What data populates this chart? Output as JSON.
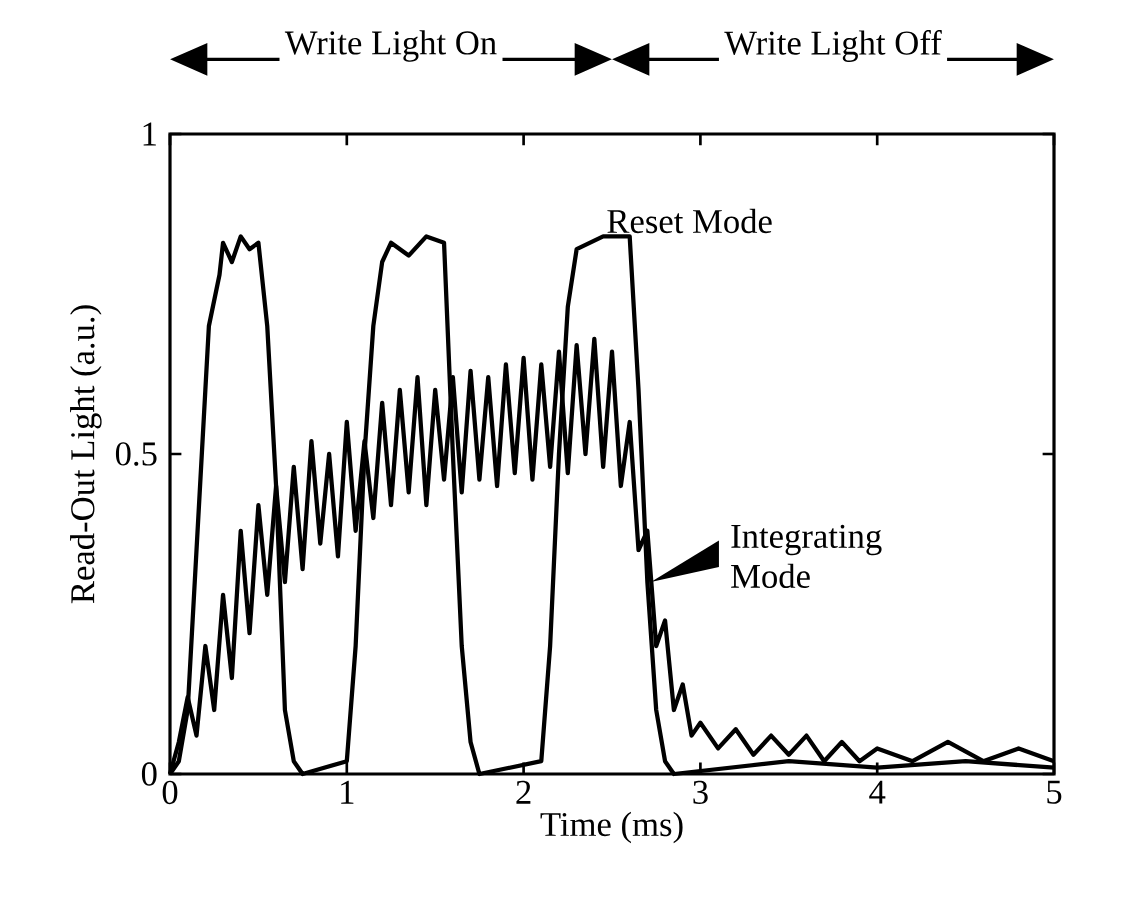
{
  "chart_data": {
    "type": "line",
    "xlabel": "Time (ms)",
    "ylabel": "Read-Out Light (a.u.)",
    "xlim": [
      0,
      5
    ],
    "xticks": [
      0,
      1,
      2,
      3,
      4,
      5
    ],
    "ylim": [
      0,
      1
    ],
    "yticks": [
      0,
      0.5,
      1
    ],
    "marker": "none",
    "line_style": "solid",
    "annotations": [
      "Write Light On",
      "Write Light Off",
      {
        "text": "Reset Mode",
        "x": 2.45,
        "y": 0.84
      },
      "Integrating Mode"
    ],
    "series": [
      {
        "color": "#000000",
        "x": [
          0,
          0.05,
          0.1,
          0.15,
          0.2,
          0.22,
          0.28,
          0.3,
          0.35,
          0.4,
          0.45,
          0.5,
          0.55,
          0.6,
          0.65,
          0.7,
          0.75,
          1.0,
          1.05,
          1.1,
          1.15,
          1.2,
          1.25,
          1.35,
          1.45,
          1.55,
          1.6,
          1.65,
          1.7,
          1.75,
          2.1,
          2.15,
          2.2,
          2.25,
          2.3,
          2.45,
          2.6,
          2.65,
          2.7,
          2.75,
          2.8,
          2.85,
          3.5,
          4.0,
          4.5,
          5.0
        ],
        "values": [
          0,
          0.02,
          0.1,
          0.35,
          0.6,
          0.7,
          0.78,
          0.83,
          0.8,
          0.84,
          0.82,
          0.83,
          0.7,
          0.45,
          0.1,
          0.02,
          0,
          0.02,
          0.2,
          0.5,
          0.7,
          0.8,
          0.83,
          0.81,
          0.84,
          0.83,
          0.5,
          0.2,
          0.05,
          0,
          0.02,
          0.2,
          0.5,
          0.73,
          0.82,
          0.84,
          0.84,
          0.6,
          0.3,
          0.1,
          0.02,
          0,
          0.02,
          0.01,
          0.02,
          0.01
        ]
      },
      {
        "color": "#000000",
        "x": [
          0,
          0.05,
          0.1,
          0.15,
          0.2,
          0.25,
          0.3,
          0.35,
          0.4,
          0.45,
          0.5,
          0.55,
          0.6,
          0.65,
          0.7,
          0.75,
          0.8,
          0.85,
          0.9,
          0.95,
          1.0,
          1.05,
          1.1,
          1.15,
          1.2,
          1.25,
          1.3,
          1.35,
          1.4,
          1.45,
          1.5,
          1.55,
          1.6,
          1.65,
          1.7,
          1.75,
          1.8,
          1.85,
          1.9,
          1.95,
          2.0,
          2.05,
          2.1,
          2.15,
          2.2,
          2.25,
          2.3,
          2.35,
          2.4,
          2.45,
          2.5,
          2.55,
          2.6,
          2.65,
          2.7,
          2.75,
          2.8,
          2.85,
          2.9,
          2.95,
          3.0,
          3.1,
          3.2,
          3.3,
          3.4,
          3.5,
          3.6,
          3.7,
          3.8,
          3.9,
          4.0,
          4.2,
          4.4,
          4.6,
          4.8,
          5.0
        ],
        "values": [
          0,
          0.05,
          0.12,
          0.06,
          0.2,
          0.1,
          0.28,
          0.15,
          0.38,
          0.22,
          0.42,
          0.28,
          0.45,
          0.3,
          0.48,
          0.32,
          0.52,
          0.36,
          0.5,
          0.34,
          0.55,
          0.38,
          0.52,
          0.4,
          0.58,
          0.42,
          0.6,
          0.44,
          0.62,
          0.42,
          0.6,
          0.46,
          0.62,
          0.44,
          0.63,
          0.46,
          0.62,
          0.45,
          0.64,
          0.47,
          0.65,
          0.46,
          0.64,
          0.48,
          0.66,
          0.47,
          0.67,
          0.5,
          0.68,
          0.48,
          0.66,
          0.45,
          0.55,
          0.35,
          0.38,
          0.2,
          0.24,
          0.1,
          0.14,
          0.06,
          0.08,
          0.04,
          0.07,
          0.03,
          0.06,
          0.03,
          0.06,
          0.02,
          0.05,
          0.02,
          0.04,
          0.02,
          0.05,
          0.02,
          0.04,
          0.02
        ]
      }
    ]
  }
}
